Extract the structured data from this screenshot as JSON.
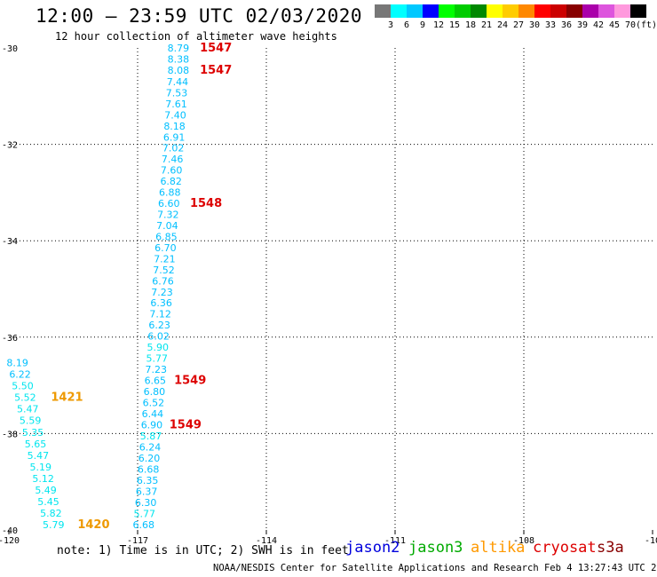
{
  "title": "12:00 – 23:59 UTC 02/03/2020",
  "subtitle": "12 hour collection of altimeter wave heights",
  "legend": {
    "colors": [
      "#777777",
      "#00ffff",
      "#00c8ff",
      "#0000ff",
      "#00ff00",
      "#00cc00",
      "#008800",
      "#ffff00",
      "#ffcc00",
      "#ff8800",
      "#ff0000",
      "#cc0000",
      "#880000",
      "#aa00aa",
      "#dd55dd",
      "#ff99dd",
      "#000000"
    ],
    "ticks": [
      "3",
      "6",
      "9",
      "12",
      "15",
      "18",
      "21",
      "24",
      "27",
      "30",
      "33",
      "36",
      "39",
      "42",
      "45",
      "70"
    ],
    "unit": "(ft)"
  },
  "map": {
    "lon_range": [
      -120,
      -105
    ],
    "lat_range": [
      -40,
      -30
    ],
    "x_ticks": [
      "-120",
      "-117",
      "-114",
      "-111",
      "-108",
      "-10"
    ],
    "y_ticks": [
      "-30",
      "-32",
      "-34",
      "-36",
      "-38",
      "-40"
    ]
  },
  "observations": [
    {
      "lon": -116.05,
      "lat": -30.0,
      "swh": "8.79",
      "color": "#00bfff"
    },
    {
      "lon": -116.05,
      "lat": -30.23,
      "swh": "8.38",
      "color": "#00bfff"
    },
    {
      "lon": -116.05,
      "lat": -30.46,
      "swh": "8.08",
      "color": "#00bfff"
    },
    {
      "lon": -116.07,
      "lat": -30.7,
      "swh": "7.44",
      "color": "#00bfff"
    },
    {
      "lon": -116.09,
      "lat": -30.93,
      "swh": "7.53",
      "color": "#00bfff"
    },
    {
      "lon": -116.1,
      "lat": -31.16,
      "swh": "7.61",
      "color": "#00bfff"
    },
    {
      "lon": -116.12,
      "lat": -31.39,
      "swh": "7.40",
      "color": "#00bfff"
    },
    {
      "lon": -116.14,
      "lat": -31.62,
      "swh": "8.18",
      "color": "#00bfff"
    },
    {
      "lon": -116.15,
      "lat": -31.85,
      "swh": "6.91",
      "color": "#00bfff"
    },
    {
      "lon": -116.17,
      "lat": -32.07,
      "swh": "7.02",
      "color": "#00bfff"
    },
    {
      "lon": -116.19,
      "lat": -32.3,
      "swh": "7.46",
      "color": "#00bfff"
    },
    {
      "lon": -116.21,
      "lat": -32.53,
      "swh": "7.60",
      "color": "#00bfff"
    },
    {
      "lon": -116.22,
      "lat": -32.76,
      "swh": "6.82",
      "color": "#00bfff"
    },
    {
      "lon": -116.25,
      "lat": -32.99,
      "swh": "6.88",
      "color": "#00bfff"
    },
    {
      "lon": -116.27,
      "lat": -33.22,
      "swh": "6.60",
      "color": "#00bfff"
    },
    {
      "lon": -116.29,
      "lat": -33.45,
      "swh": "7.32",
      "color": "#00bfff"
    },
    {
      "lon": -116.31,
      "lat": -33.68,
      "swh": "7.04",
      "color": "#00bfff"
    },
    {
      "lon": -116.33,
      "lat": -33.91,
      "swh": "6.85",
      "color": "#00bfff"
    },
    {
      "lon": -116.35,
      "lat": -34.14,
      "swh": "6.70",
      "color": "#00bfff"
    },
    {
      "lon": -116.37,
      "lat": -34.37,
      "swh": "7.21",
      "color": "#00bfff"
    },
    {
      "lon": -116.39,
      "lat": -34.6,
      "swh": "7.52",
      "color": "#00bfff"
    },
    {
      "lon": -116.41,
      "lat": -34.83,
      "swh": "6.76",
      "color": "#00bfff"
    },
    {
      "lon": -116.43,
      "lat": -35.06,
      "swh": "7.23",
      "color": "#00bfff"
    },
    {
      "lon": -116.45,
      "lat": -35.29,
      "swh": "6.36",
      "color": "#00bfff"
    },
    {
      "lon": -116.47,
      "lat": -35.52,
      "swh": "7.12",
      "color": "#00bfff"
    },
    {
      "lon": -116.49,
      "lat": -35.75,
      "swh": "6.23",
      "color": "#00bfff"
    },
    {
      "lon": -116.51,
      "lat": -35.98,
      "swh": "6.02",
      "color": "#00bfff"
    },
    {
      "lon": -116.53,
      "lat": -36.21,
      "swh": "5.90",
      "color": "#00e5ee"
    },
    {
      "lon": -116.55,
      "lat": -36.44,
      "swh": "5.77",
      "color": "#00e5ee"
    },
    {
      "lon": -116.57,
      "lat": -36.67,
      "swh": "7.23",
      "color": "#00bfff"
    },
    {
      "lon": -116.59,
      "lat": -36.9,
      "swh": "6.65",
      "color": "#00bfff"
    },
    {
      "lon": -116.61,
      "lat": -37.13,
      "swh": "6.80",
      "color": "#00bfff"
    },
    {
      "lon": -116.63,
      "lat": -37.36,
      "swh": "6.52",
      "color": "#00bfff"
    },
    {
      "lon": -116.65,
      "lat": -37.59,
      "swh": "6.44",
      "color": "#00bfff"
    },
    {
      "lon": -116.67,
      "lat": -37.82,
      "swh": "6.90",
      "color": "#00bfff"
    },
    {
      "lon": -116.69,
      "lat": -38.05,
      "swh": "5.87",
      "color": "#00e5ee"
    },
    {
      "lon": -116.71,
      "lat": -38.28,
      "swh": "6.24",
      "color": "#00bfff"
    },
    {
      "lon": -116.73,
      "lat": -38.51,
      "swh": "6.20",
      "color": "#00bfff"
    },
    {
      "lon": -116.75,
      "lat": -38.74,
      "swh": "6.68",
      "color": "#00bfff"
    },
    {
      "lon": -116.77,
      "lat": -38.97,
      "swh": "6.35",
      "color": "#00bfff"
    },
    {
      "lon": -116.79,
      "lat": -39.2,
      "swh": "6.37",
      "color": "#00bfff"
    },
    {
      "lon": -116.81,
      "lat": -39.43,
      "swh": "6.30",
      "color": "#00bfff"
    },
    {
      "lon": -116.84,
      "lat": -39.66,
      "swh": "5.77",
      "color": "#00e5ee"
    },
    {
      "lon": -116.86,
      "lat": -39.89,
      "swh": "6.68",
      "color": "#00bfff"
    },
    {
      "lon": -119.8,
      "lat": -36.53,
      "swh": "8.19",
      "color": "#00bfff"
    },
    {
      "lon": -119.74,
      "lat": -36.77,
      "swh": "6.22",
      "color": "#00bfff"
    },
    {
      "lon": -119.68,
      "lat": -37.01,
      "swh": "5.50",
      "color": "#00e5ee"
    },
    {
      "lon": -119.62,
      "lat": -37.25,
      "swh": "5.52",
      "color": "#00e5ee"
    },
    {
      "lon": -119.56,
      "lat": -37.49,
      "swh": "5.47",
      "color": "#00e5ee"
    },
    {
      "lon": -119.5,
      "lat": -37.73,
      "swh": "5.59",
      "color": "#00e5ee"
    },
    {
      "lon": -119.44,
      "lat": -37.97,
      "swh": "5.35",
      "color": "#00e5ee"
    },
    {
      "lon": -119.38,
      "lat": -38.21,
      "swh": "5.65",
      "color": "#00e5ee"
    },
    {
      "lon": -119.32,
      "lat": -38.45,
      "swh": "5.47",
      "color": "#00e5ee"
    },
    {
      "lon": -119.26,
      "lat": -38.69,
      "swh": "5.19",
      "color": "#00e5ee"
    },
    {
      "lon": -119.2,
      "lat": -38.93,
      "swh": "5.12",
      "color": "#00e5ee"
    },
    {
      "lon": -119.14,
      "lat": -39.17,
      "swh": "5.49",
      "color": "#00e5ee"
    },
    {
      "lon": -119.08,
      "lat": -39.41,
      "swh": "5.45",
      "color": "#00e5ee"
    },
    {
      "lon": -119.02,
      "lat": -39.65,
      "swh": "5.82",
      "color": "#00e5ee"
    },
    {
      "lon": -118.96,
      "lat": -39.89,
      "swh": "5.79",
      "color": "#00e5ee"
    }
  ],
  "pass_times": [
    {
      "lon": -115.55,
      "lat": -30.0,
      "time": "1547",
      "color": "#dd0000"
    },
    {
      "lon": -115.55,
      "lat": -30.46,
      "time": "1547",
      "color": "#dd0000"
    },
    {
      "lon": -115.78,
      "lat": -33.22,
      "time": "1548",
      "color": "#dd0000"
    },
    {
      "lon": -116.15,
      "lat": -36.9,
      "time": "1549",
      "color": "#dd0000"
    },
    {
      "lon": -116.26,
      "lat": -37.82,
      "time": "1549",
      "color": "#dd0000"
    },
    {
      "lon": -119.02,
      "lat": -37.25,
      "time": "1421",
      "color": "#ee9900"
    },
    {
      "lon": -118.4,
      "lat": -39.89,
      "time": "1420",
      "color": "#ee9900"
    }
  ],
  "note": "note:  1) Time is in UTC; 2) SWH is in feet",
  "satellites": [
    {
      "name": "jason2",
      "color": "#0000dd"
    },
    {
      "name": "jason3",
      "color": "#00aa00"
    },
    {
      "name": "altika",
      "color": "#ff9900"
    },
    {
      "name": "cryosat",
      "color": "#dd0000"
    },
    {
      "name": "s3a",
      "color": "#880000"
    }
  ],
  "footer": "NOAA/NESDIS Center for Satellite Applications and Research   Feb  4 13:27:43 UTC 2020"
}
